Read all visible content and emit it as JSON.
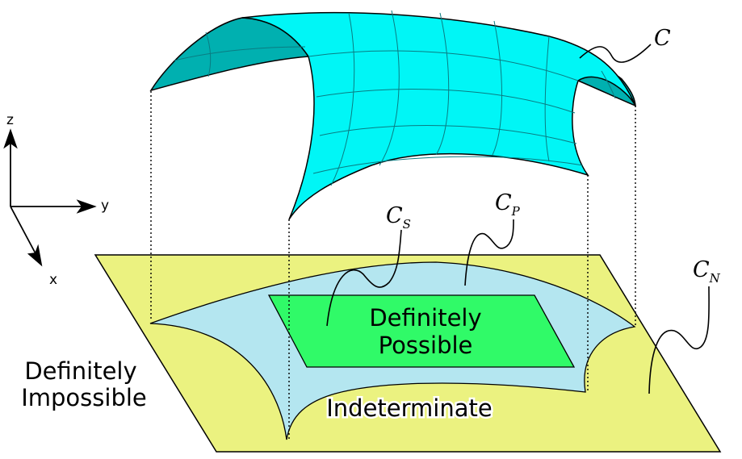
{
  "axes": {
    "z_label": "z",
    "y_label": "y",
    "x_label": "x"
  },
  "labels": {
    "definitely_possible_line1": "Definitely",
    "definitely_possible_line2": "Possible",
    "definitely_impossible_line1": "Definitely",
    "definitely_impossible_line2": "Impossible",
    "indeterminate": "Indeterminate"
  },
  "symbols": {
    "c_main": "C",
    "c_s_base": "C",
    "c_s_sub": "S",
    "c_p_base": "C",
    "c_p_sub": "P",
    "c_n_base": "C",
    "c_n_sub": "N"
  },
  "colors": {
    "surface": "#00f6f6",
    "surface_dark": "#00b0b0",
    "plane": "#ebf280",
    "indeterminate_region": "#b4e6f0",
    "possible_region": "#30fa68",
    "outline": "#000000"
  }
}
